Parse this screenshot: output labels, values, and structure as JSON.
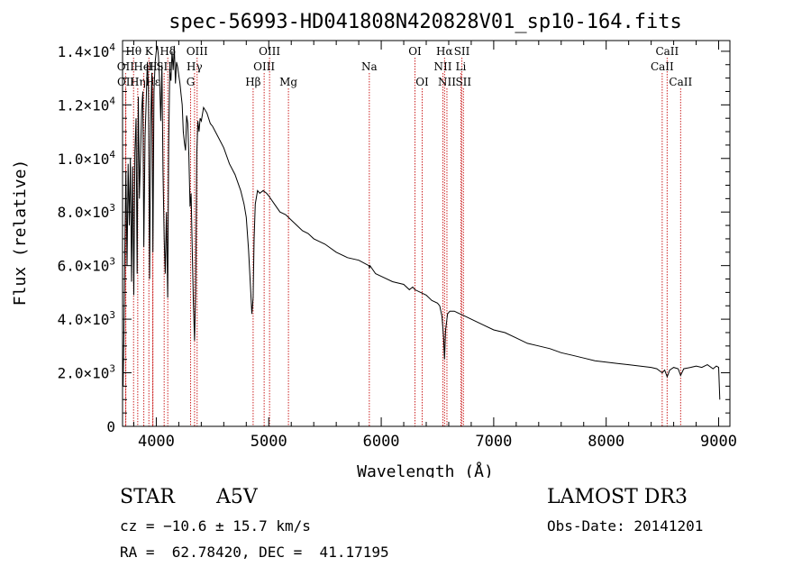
{
  "chart_data": {
    "type": "line",
    "title": "spec-56993-HD041808N420828V01_sp10-164.fits",
    "xlabel": "Wavelength (Å)",
    "ylabel": "Flux (relative)",
    "xlim": [
      3700,
      9100
    ],
    "ylim": [
      0,
      14400
    ],
    "x_ticks": [
      4000,
      5000,
      6000,
      7000,
      8000,
      9000
    ],
    "x_tick_labels": [
      "4000",
      "5000",
      "6000",
      "7000",
      "8000",
      "9000"
    ],
    "y_ticks": [
      {
        "value": 0,
        "mant": "0",
        "exp": ""
      },
      {
        "value": 2000,
        "mant": "2.0×10",
        "exp": "3"
      },
      {
        "value": 4000,
        "mant": "4.0×10",
        "exp": "3"
      },
      {
        "value": 6000,
        "mant": "6.0×10",
        "exp": "3"
      },
      {
        "value": 8000,
        "mant": "8.0×10",
        "exp": "3"
      },
      {
        "value": 10000,
        "mant": "1.0×10",
        "exp": "4"
      },
      {
        "value": 12000,
        "mant": "1.2×10",
        "exp": "4"
      },
      {
        "value": 14000,
        "mant": "1.4×10",
        "exp": "4"
      }
    ],
    "series": [
      {
        "name": "flux",
        "x": [
          3700,
          3705,
          3712,
          3720,
          3730,
          3740,
          3750,
          3760,
          3770,
          3780,
          3790,
          3800,
          3810,
          3820,
          3830,
          3835,
          3840,
          3850,
          3860,
          3870,
          3880,
          3889,
          3900,
          3910,
          3920,
          3930,
          3935,
          3940,
          3950,
          3960,
          3970,
          3980,
          3990,
          4000,
          4010,
          4020,
          4030,
          4040,
          4050,
          4060,
          4070,
          4080,
          4090,
          4101,
          4110,
          4120,
          4130,
          4140,
          4150,
          4160,
          4170,
          4180,
          4190,
          4200,
          4210,
          4220,
          4230,
          4240,
          4250,
          4260,
          4270,
          4280,
          4290,
          4300,
          4310,
          4320,
          4330,
          4340,
          4350,
          4360,
          4370,
          4380,
          4390,
          4400,
          4420,
          4450,
          4480,
          4500,
          4550,
          4600,
          4650,
          4700,
          4750,
          4780,
          4800,
          4820,
          4840,
          4850,
          4861,
          4870,
          4880,
          4900,
          4920,
          4950,
          4980,
          5000,
          5050,
          5100,
          5150,
          5200,
          5250,
          5300,
          5350,
          5400,
          5450,
          5500,
          5600,
          5700,
          5800,
          5890,
          5895,
          5900,
          5950,
          6000,
          6100,
          6200,
          6250,
          6280,
          6300,
          6400,
          6450,
          6500,
          6520,
          6540,
          6555,
          6563,
          6572,
          6590,
          6610,
          6650,
          6700,
          6750,
          6800,
          6900,
          7000,
          7100,
          7200,
          7300,
          7400,
          7500,
          7600,
          7700,
          7800,
          7900,
          8000,
          8100,
          8200,
          8300,
          8400,
          8450,
          8498,
          8520,
          8542,
          8565,
          8600,
          8640,
          8662,
          8690,
          8750,
          8800,
          8850,
          8900,
          8950,
          8980,
          9000,
          9010
        ],
        "y": [
          2600,
          1500,
          3500,
          6500,
          9500,
          6000,
          9800,
          7500,
          10000,
          5400,
          9700,
          4900,
          10200,
          11500,
          5700,
          9000,
          12300,
          8500,
          10200,
          11800,
          12500,
          6700,
          10800,
          12100,
          13600,
          12700,
          9900,
          5500,
          11200,
          13200,
          6500,
          12500,
          13600,
          14000,
          14200,
          13800,
          12800,
          11400,
          13500,
          9500,
          7000,
          5700,
          8000,
          4800,
          10500,
          13300,
          12900,
          14000,
          13300,
          14200,
          12800,
          13600,
          13400,
          13100,
          12800,
          12400,
          12000,
          11000,
          10600,
          10300,
          11600,
          11300,
          10100,
          8200,
          8700,
          6500,
          4600,
          3200,
          5000,
          10200,
          11400,
          11000,
          11500,
          11400,
          11900,
          11700,
          11300,
          11200,
          10800,
          10400,
          9800,
          9400,
          8800,
          8300,
          7800,
          6600,
          5000,
          4200,
          4800,
          7000,
          8300,
          8800,
          8700,
          8800,
          8700,
          8600,
          8300,
          8000,
          7900,
          7700,
          7500,
          7300,
          7200,
          7000,
          6900,
          6800,
          6500,
          6300,
          6200,
          6000,
          5900,
          6000,
          5700,
          5600,
          5400,
          5300,
          5100,
          5200,
          5100,
          4900,
          4700,
          4600,
          4500,
          4100,
          3300,
          2500,
          3600,
          4200,
          4300,
          4300,
          4200,
          4100,
          4000,
          3800,
          3600,
          3500,
          3300,
          3100,
          3000,
          2900,
          2750,
          2650,
          2550,
          2450,
          2400,
          2350,
          2300,
          2250,
          2200,
          2150,
          2000,
          2100,
          1850,
          2100,
          2200,
          2150,
          1900,
          2150,
          2200,
          2250,
          2200,
          2300,
          2150,
          2250,
          2200,
          1000
        ]
      }
    ],
    "lines": [
      {
        "label": "Hθ",
        "x": 3798,
        "row": 0
      },
      {
        "label": "OII",
        "x": 3727,
        "row": 1
      },
      {
        "label": "OII",
        "x": 3729,
        "row": 2
      },
      {
        "label": "Hη",
        "x": 3835,
        "row": 2
      },
      {
        "label": "HeI",
        "x": 3889,
        "row": 1
      },
      {
        "label": "Hε",
        "x": 3970,
        "row": 2
      },
      {
        "label": "K",
        "x": 3934,
        "row": 0
      },
      {
        "label": "H",
        "x": 3968,
        "row": 1
      },
      {
        "label": "Hδ",
        "x": 4102,
        "row": 0
      },
      {
        "label": "SII",
        "x": 4070,
        "row": 1
      },
      {
        "label": "OIII",
        "x": 4363,
        "row": 0
      },
      {
        "label": "Hγ",
        "x": 4340,
        "row": 1
      },
      {
        "label": "G",
        "x": 4305,
        "row": 2
      },
      {
        "label": "Hβ",
        "x": 4861,
        "row": 2
      },
      {
        "label": "OIII",
        "x": 5007,
        "row": 0
      },
      {
        "label": "OIII",
        "x": 4959,
        "row": 1
      },
      {
        "label": "Mg",
        "x": 5175,
        "row": 2
      },
      {
        "label": "Na",
        "x": 5894,
        "row": 1
      },
      {
        "label": "OI",
        "x": 6300,
        "row": 0
      },
      {
        "label": "OI",
        "x": 6364,
        "row": 2
      },
      {
        "label": "Hα",
        "x": 6563,
        "row": 0
      },
      {
        "label": "NII",
        "x": 6548,
        "row": 1
      },
      {
        "label": "NII",
        "x": 6584,
        "row": 2
      },
      {
        "label": "SII",
        "x": 6717,
        "row": 0
      },
      {
        "label": "Li",
        "x": 6708,
        "row": 1
      },
      {
        "label": "SII",
        "x": 6731,
        "row": 2
      },
      {
        "label": "CaII",
        "x": 8542,
        "row": 0
      },
      {
        "label": "CaII",
        "x": 8498,
        "row": 1
      },
      {
        "label": "CaII",
        "x": 8662,
        "row": 2
      }
    ],
    "line_color": "#cc2222",
    "grid": false,
    "legend": "none"
  },
  "info": {
    "object_class": "STAR",
    "subclass": "A5V",
    "survey": "LAMOST DR3",
    "redshift": "cz = −10.6 ± 15.7 km/s",
    "obs_date": "Obs-Date: 20141201",
    "coords": "RA =  62.78420, DEC =  41.17195"
  }
}
